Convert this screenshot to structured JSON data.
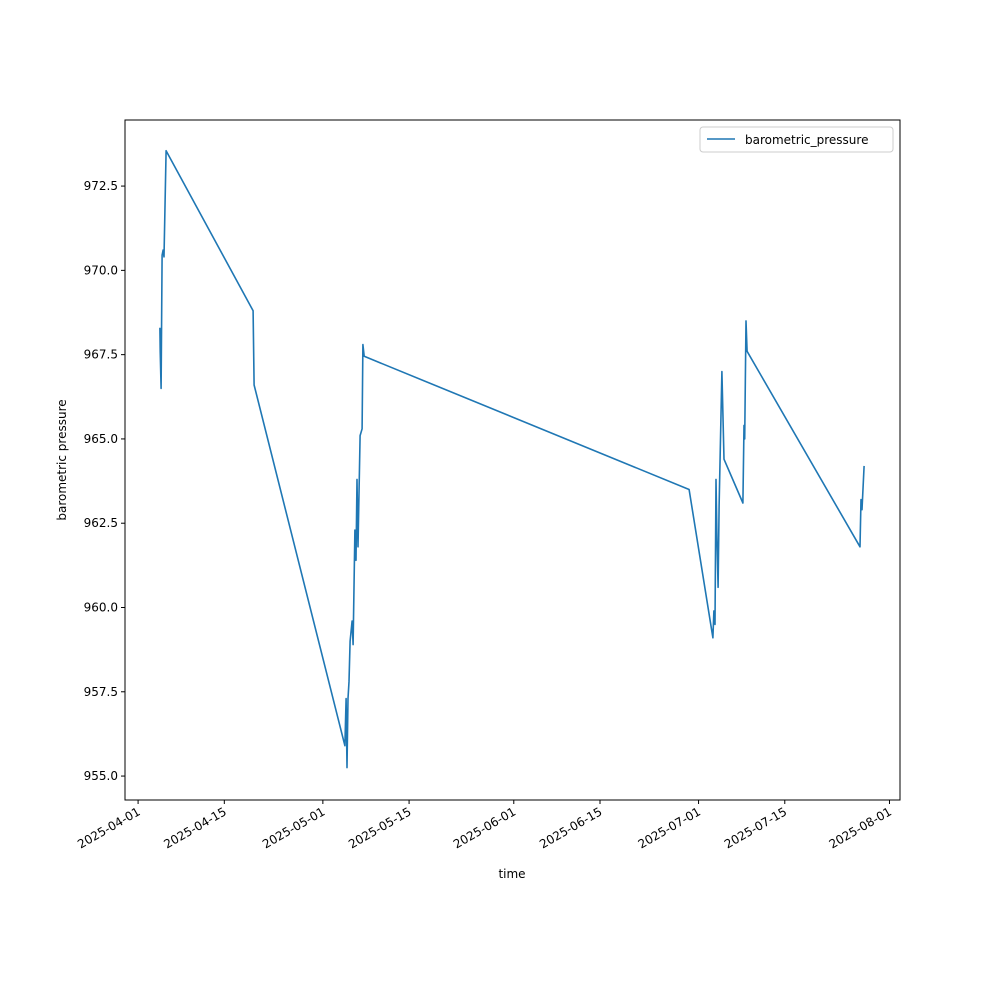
{
  "chart_data": {
    "type": "line",
    "title": "",
    "xlabel": "time",
    "ylabel": "barometric pressure",
    "xlim": [
      "2025-03-29T21:00",
      "2025-08-02T17:00"
    ],
    "ylim": [
      954.29,
      974.46
    ],
    "grid": false,
    "legend_placement": "upper right",
    "x_ticks": [
      "2025-04-01",
      "2025-04-15",
      "2025-05-01",
      "2025-05-15",
      "2025-06-01",
      "2025-06-15",
      "2025-07-01",
      "2025-07-15",
      "2025-08-01"
    ],
    "y_ticks": [
      955.0,
      957.5,
      960.0,
      962.5,
      965.0,
      967.5,
      970.0,
      972.5
    ],
    "y_tick_labels": [
      "955.0",
      "957.5",
      "960.0",
      "962.5",
      "965.0",
      "967.5",
      "970.0",
      "972.5"
    ],
    "series": [
      {
        "name": "barometric_pressure",
        "color": "#1f77b4",
        "x": [
          "2025-04-04T13:00",
          "2025-04-04T14:00",
          "2025-04-04T17:30",
          "2025-04-04T21:30",
          "2025-04-05T01:30",
          "2025-04-05T05:00",
          "2025-04-05T13:00",
          "2025-04-19T16:00",
          "2025-04-19T20:00",
          "2025-05-04T14:00",
          "2025-05-04T18:30",
          "2025-05-04T22:00",
          "2025-05-05T02:00",
          "2025-05-05T06:00",
          "2025-05-05T10:00",
          "2025-05-05T18:00",
          "2025-05-05T22:00",
          "2025-05-06T05:00",
          "2025-05-06T09:00",
          "2025-05-06T13:00",
          "2025-05-06T17:00",
          "2025-05-07T01:00",
          "2025-05-07T09:00",
          "2025-05-07T12:00",
          "2025-05-07T17:00",
          "2025-06-29T11:00",
          "2025-07-03T08:00",
          "2025-07-03T12:00",
          "2025-07-03T16:00",
          "2025-07-03T20:00",
          "2025-07-04T00:00",
          "2025-07-04T04:00",
          "2025-07-04T08:00",
          "2025-07-04T19:00",
          "2025-07-05T03:00",
          "2025-07-08T05:00",
          "2025-07-08T09:00",
          "2025-07-08T12:00",
          "2025-07-08T17:00",
          "2025-07-08T21:00",
          "2025-07-27T05:00",
          "2025-07-27T09:00",
          "2025-07-27T13:00",
          "2025-07-27T21:00"
        ],
        "y": [
          968.3,
          967.6,
          966.5,
          970.45,
          970.6,
          970.4,
          973.55,
          968.8,
          966.6,
          955.9,
          957.3,
          955.25,
          957.3,
          957.8,
          959.0,
          959.6,
          958.9,
          962.3,
          961.4,
          963.8,
          961.8,
          965.1,
          965.3,
          967.8,
          967.45,
          963.5,
          959.1,
          959.9,
          959.5,
          963.8,
          962.0,
          960.6,
          963.0,
          967.0,
          964.4,
          963.1,
          965.4,
          965.0,
          968.5,
          967.6,
          961.8,
          963.2,
          962.9,
          964.2
        ]
      }
    ]
  }
}
